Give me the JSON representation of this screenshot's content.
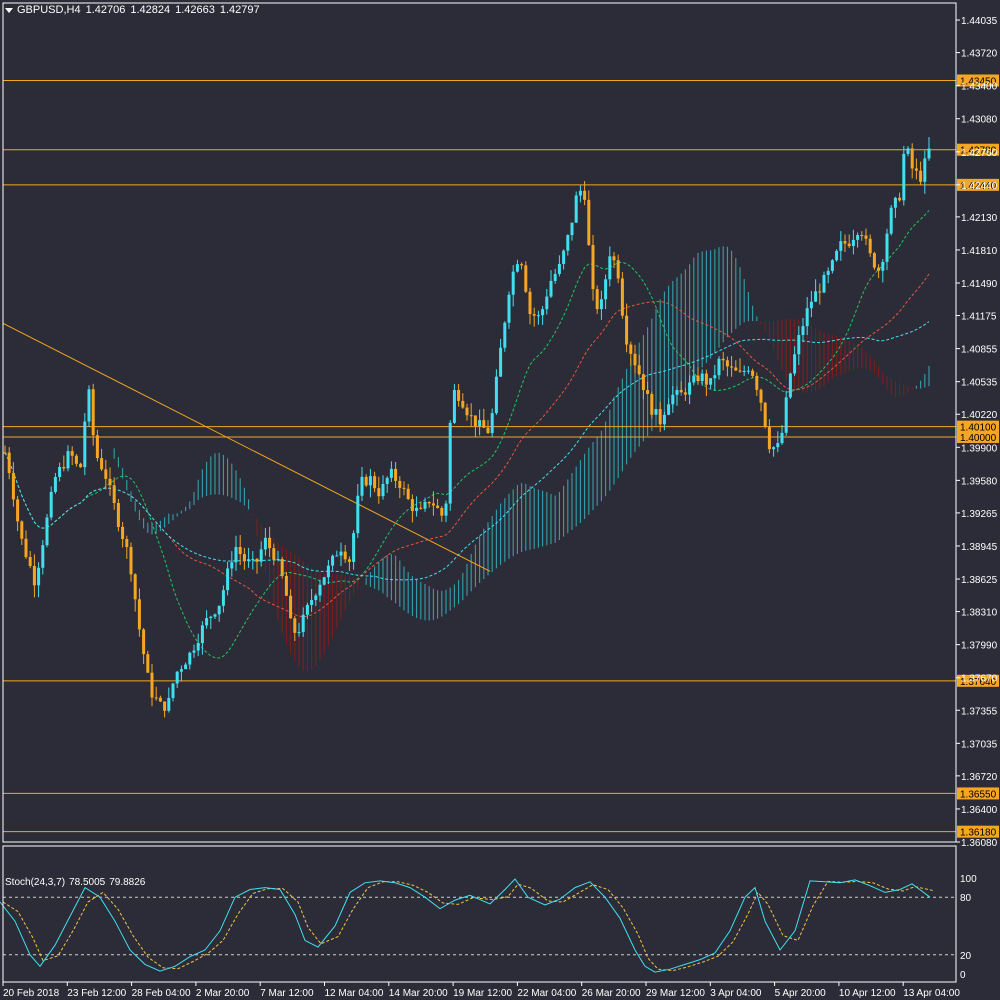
{
  "header": {
    "symbol": "GBPUSD,H4",
    "open": "1.42706",
    "high": "1.42824",
    "low": "1.42663",
    "close": "1.42797"
  },
  "stoch_header": {
    "name": "Stoch(24,3,7)",
    "main": "78.5005",
    "signal": "79.8826"
  },
  "colors": {
    "background": "#2b2c37",
    "bull_candle": "#40e0f0",
    "bear_candle": "#f5a623",
    "level_line": "#f5a623",
    "kumo_bull": "#36b4c0",
    "kumo_bear": "#8b1a1a",
    "ma_green": "#22c55e",
    "ma_red": "#e8553a",
    "ma_cyan": "#40e0f0",
    "stoch_main": "#40e0f0",
    "stoch_signal": "#f5c542"
  },
  "price_axis": {
    "ticks": [
      "1.44035",
      "1.43720",
      "1.43400",
      "1.43080",
      "1.42760",
      "1.42440",
      "1.42130",
      "1.41810",
      "1.41490",
      "1.41175",
      "1.40855",
      "1.40535",
      "1.40220",
      "1.39900",
      "1.39580",
      "1.39265",
      "1.38945",
      "1.38625",
      "1.38310",
      "1.37990",
      "1.37670",
      "1.37355",
      "1.37035",
      "1.36720",
      "1.36400",
      "1.36080"
    ]
  },
  "levels": [
    {
      "price": 1.4345,
      "label": "1.43450"
    },
    {
      "price": 1.4278,
      "label": "1.42780"
    },
    {
      "price": 1.4244,
      "label": "1.42440"
    },
    {
      "price": 1.401,
      "label": "1.40100"
    },
    {
      "price": 1.4,
      "label": "1.40000"
    },
    {
      "price": 1.3764,
      "label": "1.37640"
    },
    {
      "price": 1.3655,
      "label": "1.36550"
    },
    {
      "price": 1.3618,
      "label": "1.36180"
    }
  ],
  "stoch_axis": {
    "ticks": [
      "100",
      "80",
      "20",
      "0"
    ]
  },
  "time_axis": {
    "labels": [
      "20 Feb 2018",
      "23 Feb 12:00",
      "28 Feb 04:00",
      "2 Mar 20:00",
      "7 Mar 12:00",
      "12 Mar 04:00",
      "14 Mar 20:00",
      "19 Mar 12:00",
      "22 Mar 04:00",
      "26 Mar 20:00",
      "29 Mar 12:00",
      "3 Apr 04:00",
      "5 Apr 20:00",
      "10 Apr 12:00",
      "13 Apr 04:00"
    ]
  },
  "chart_data": {
    "type": "candlestick",
    "symbol": "GBPUSD",
    "timeframe": "H4",
    "ylim": [
      1.3608,
      1.442
    ],
    "close_path": [
      [
        0,
        1.4005
      ],
      [
        10,
        1.3965
      ],
      [
        20,
        1.3905
      ],
      [
        35,
        1.386
      ],
      [
        55,
        1.396
      ],
      [
        70,
        1.3985
      ],
      [
        80,
        1.3965
      ],
      [
        88,
        1.405
      ],
      [
        95,
        1.3985
      ],
      [
        105,
        1.3965
      ],
      [
        118,
        1.392
      ],
      [
        130,
        1.388
      ],
      [
        140,
        1.381
      ],
      [
        150,
        1.3755
      ],
      [
        160,
        1.374
      ],
      [
        168,
        1.374
      ],
      [
        175,
        1.377
      ],
      [
        190,
        1.379
      ],
      [
        205,
        1.382
      ],
      [
        220,
        1.384
      ],
      [
        235,
        1.3895
      ],
      [
        245,
        1.388
      ],
      [
        255,
        1.3875
      ],
      [
        265,
        1.39
      ],
      [
        275,
        1.3885
      ],
      [
        285,
        1.3855
      ],
      [
        292,
        1.381
      ],
      [
        300,
        1.3815
      ],
      [
        310,
        1.384
      ],
      [
        320,
        1.386
      ],
      [
        330,
        1.3875
      ],
      [
        340,
        1.3895
      ],
      [
        350,
        1.388
      ],
      [
        360,
        1.3955
      ],
      [
        370,
        1.396
      ],
      [
        380,
        1.3945
      ],
      [
        390,
        1.3965
      ],
      [
        400,
        1.3955
      ],
      [
        410,
        1.3935
      ],
      [
        420,
        1.3925
      ],
      [
        430,
        1.394
      ],
      [
        445,
        1.392
      ],
      [
        452,
        1.4045
      ],
      [
        460,
        1.404
      ],
      [
        470,
        1.402
      ],
      [
        480,
        1.401
      ],
      [
        490,
        1.4005
      ],
      [
        500,
        1.408
      ],
      [
        510,
        1.415
      ],
      [
        520,
        1.418
      ],
      [
        530,
        1.412
      ],
      [
        540,
        1.4115
      ],
      [
        550,
        1.415
      ],
      [
        560,
        1.4165
      ],
      [
        570,
        1.42
      ],
      [
        578,
        1.424
      ],
      [
        585,
        1.4235
      ],
      [
        592,
        1.414
      ],
      [
        600,
        1.412
      ],
      [
        610,
        1.418
      ],
      [
        618,
        1.416
      ],
      [
        625,
        1.41
      ],
      [
        632,
        1.408
      ],
      [
        640,
        1.406
      ],
      [
        650,
        1.403
      ],
      [
        660,
        1.4015
      ],
      [
        670,
        1.404
      ],
      [
        680,
        1.404
      ],
      [
        690,
        1.405
      ],
      [
        700,
        1.406
      ],
      [
        710,
        1.405
      ],
      [
        720,
        1.4075
      ],
      [
        730,
        1.4065
      ],
      [
        740,
        1.406
      ],
      [
        750,
        1.407
      ],
      [
        760,
        1.404
      ],
      [
        770,
        1.399
      ],
      [
        780,
        1.399
      ],
      [
        790,
        1.406
      ],
      [
        800,
        1.41
      ],
      [
        810,
        1.413
      ],
      [
        820,
        1.4145
      ],
      [
        830,
        1.416
      ],
      [
        840,
        1.4185
      ],
      [
        850,
        1.419
      ],
      [
        860,
        1.4205
      ],
      [
        870,
        1.4175
      ],
      [
        880,
        1.416
      ],
      [
        890,
        1.4215
      ],
      [
        900,
        1.4235
      ],
      [
        905,
        1.4285
      ],
      [
        912,
        1.426
      ],
      [
        920,
        1.425
      ],
      [
        925,
        1.4265
      ],
      [
        930,
        1.428
      ]
    ],
    "trendline": {
      "from": [
        0,
        1.411
      ],
      "to": [
        490,
        1.387
      ]
    },
    "stochastic": {
      "params": [
        24,
        3,
        7
      ],
      "main": 78.5005,
      "signal": 79.8826,
      "levels": [
        80,
        20
      ],
      "path": [
        [
          0,
          75
        ],
        [
          15,
          55
        ],
        [
          30,
          20
        ],
        [
          40,
          8
        ],
        [
          55,
          30
        ],
        [
          70,
          60
        ],
        [
          85,
          90
        ],
        [
          100,
          80
        ],
        [
          115,
          55
        ],
        [
          130,
          25
        ],
        [
          145,
          10
        ],
        [
          160,
          3
        ],
        [
          175,
          8
        ],
        [
          190,
          18
        ],
        [
          205,
          25
        ],
        [
          220,
          45
        ],
        [
          235,
          80
        ],
        [
          250,
          88
        ],
        [
          265,
          90
        ],
        [
          280,
          88
        ],
        [
          295,
          62
        ],
        [
          305,
          35
        ],
        [
          318,
          28
        ],
        [
          335,
          50
        ],
        [
          350,
          85
        ],
        [
          365,
          95
        ],
        [
          380,
          97
        ],
        [
          395,
          95
        ],
        [
          410,
          90
        ],
        [
          425,
          80
        ],
        [
          440,
          68
        ],
        [
          455,
          77
        ],
        [
          470,
          82
        ],
        [
          490,
          73
        ],
        [
          505,
          88
        ],
        [
          515,
          99
        ],
        [
          528,
          80
        ],
        [
          545,
          72
        ],
        [
          560,
          78
        ],
        [
          575,
          90
        ],
        [
          590,
          96
        ],
        [
          605,
          80
        ],
        [
          620,
          58
        ],
        [
          635,
          25
        ],
        [
          645,
          8
        ],
        [
          655,
          2
        ],
        [
          670,
          5
        ],
        [
          685,
          10
        ],
        [
          700,
          15
        ],
        [
          715,
          22
        ],
        [
          730,
          45
        ],
        [
          745,
          80
        ],
        [
          755,
          90
        ],
        [
          765,
          55
        ],
        [
          780,
          25
        ],
        [
          795,
          45
        ],
        [
          810,
          97
        ],
        [
          825,
          96
        ],
        [
          840,
          95
        ],
        [
          855,
          98
        ],
        [
          870,
          92
        ],
        [
          885,
          85
        ],
        [
          900,
          88
        ],
        [
          912,
          94
        ],
        [
          930,
          80
        ]
      ]
    }
  }
}
